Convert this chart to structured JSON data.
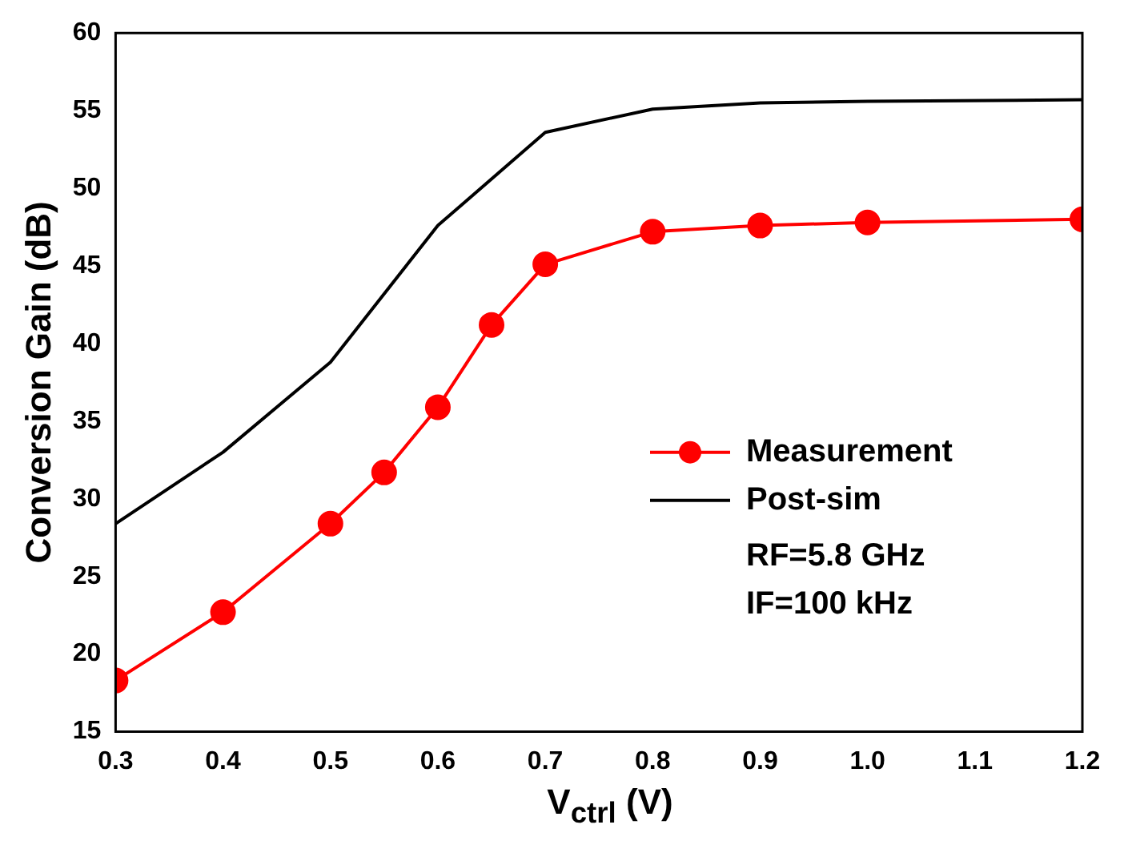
{
  "chart_data": {
    "type": "line",
    "xlabel": "V$_{ctrl}$ (V)",
    "ylabel": "Conversion Gain (dB)",
    "xlim": [
      0.3,
      1.2
    ],
    "xticks": [
      0.3,
      0.4,
      0.5,
      0.6,
      0.7,
      0.8,
      0.9,
      {
        "value": 1,
        "label": "1.0"
      },
      1.1,
      1.2
    ],
    "ylim": [
      15,
      60
    ],
    "yticks": [
      15,
      20,
      25,
      30,
      35,
      40,
      45,
      50,
      55,
      60
    ],
    "grid": false,
    "legend": "right",
    "series": [
      {
        "name": "Measurement",
        "color": "#ff0000",
        "marker": "circle",
        "x": [
          0.3,
          0.4,
          0.5,
          0.55,
          0.6,
          0.65,
          0.7,
          0.8,
          0.9,
          1.0,
          1.2
        ],
        "values": [
          18.3,
          22.7,
          28.4,
          31.7,
          35.9,
          41.2,
          45.1,
          47.2,
          47.6,
          47.8,
          48.0
        ]
      },
      {
        "name": "Post-sim",
        "color": "#000000",
        "marker": "none",
        "x": [
          0.3,
          0.4,
          0.5,
          0.6,
          0.7,
          0.8,
          0.9,
          1.0,
          1.2
        ],
        "values": [
          28.4,
          33.0,
          38.8,
          47.6,
          53.6,
          55.1,
          55.5,
          55.6,
          55.7
        ]
      }
    ],
    "annotations": [
      "RF=5.8 GHz",
      "IF=100 kHz"
    ]
  }
}
